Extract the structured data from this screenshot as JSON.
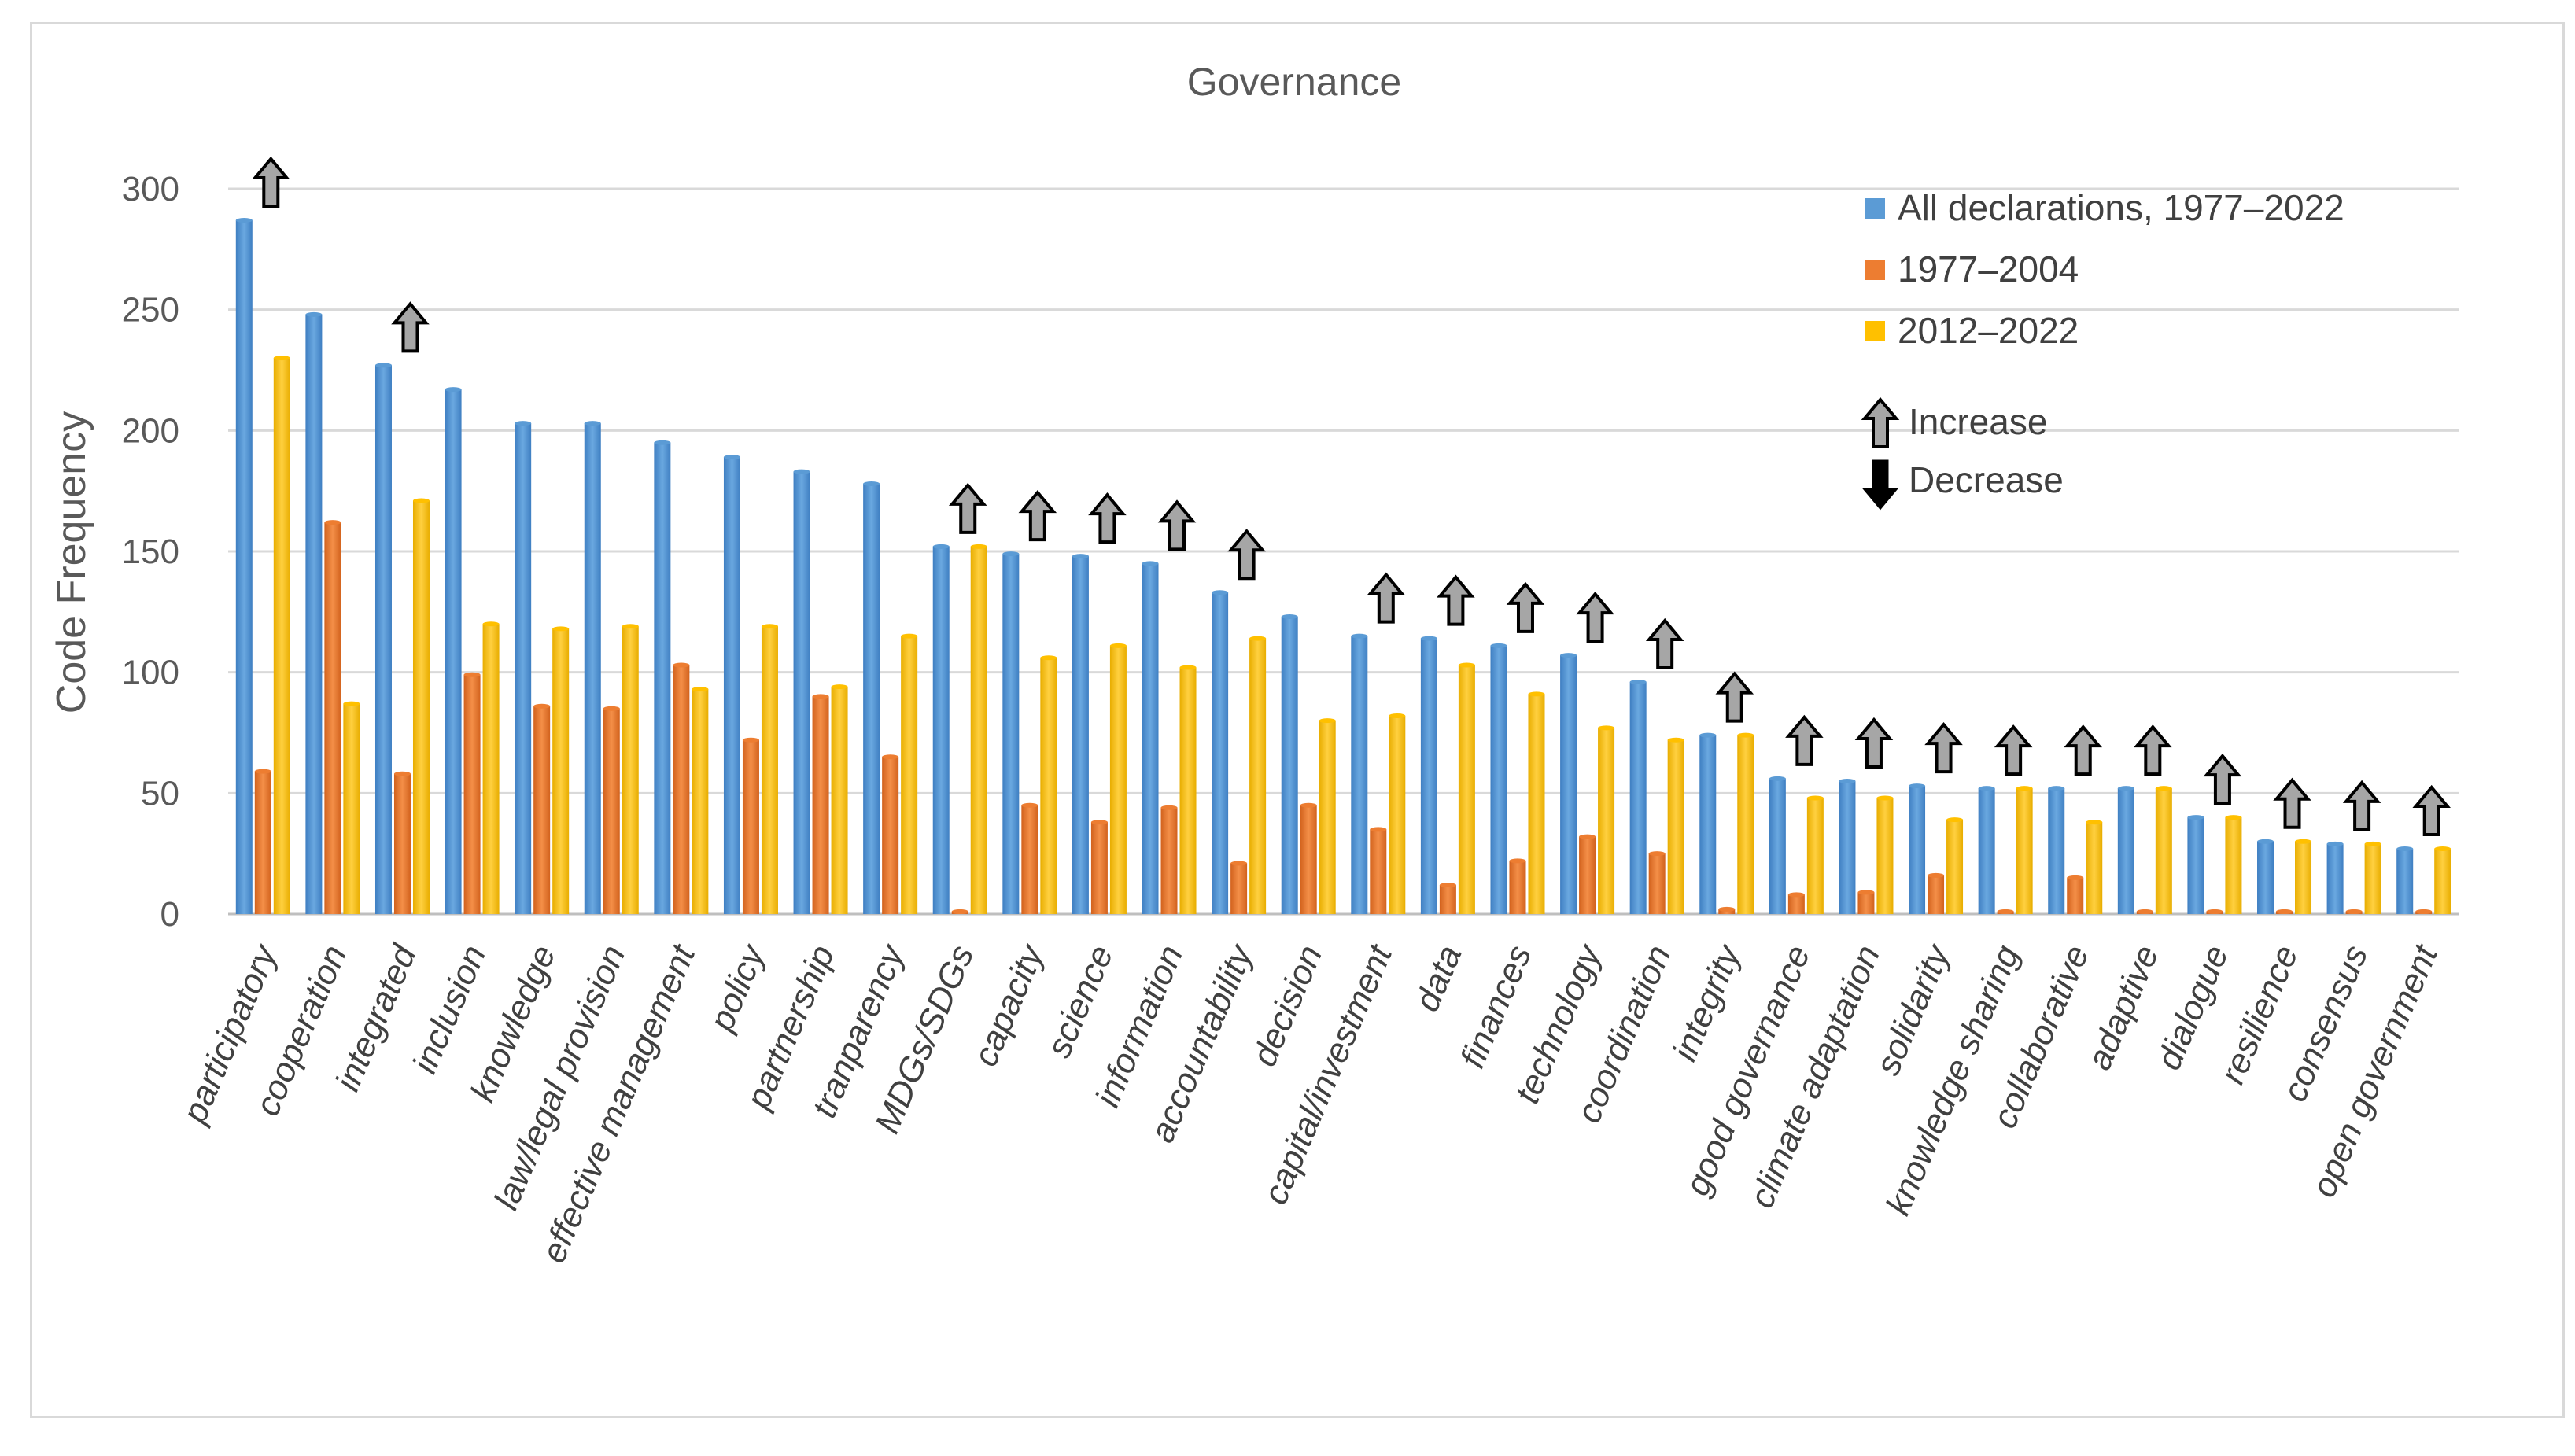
{
  "chart_data": {
    "type": "bar",
    "title": "Governance",
    "xlabel": "",
    "ylabel": "Code Frequency",
    "ylim": [
      0,
      300
    ],
    "yticks": [
      0,
      50,
      100,
      150,
      200,
      250,
      300
    ],
    "grid": true,
    "legend_position": "top-right",
    "categories": [
      "participatory",
      "cooperation",
      "integrated",
      "inclusion",
      "knowledge",
      "law/legal provision",
      "effective management",
      "policy",
      "partnership",
      "tranparency",
      "MDGs/SDGs",
      "capacity",
      "science",
      "information",
      "accountability",
      "decision",
      "capital/investment",
      "data",
      "finances",
      "technology",
      "coordination",
      "integrity",
      "good governance",
      "climate adaptation",
      "solidarity",
      "knowledge sharing",
      "collaborative",
      "adaptive",
      "dialogue",
      "resilience",
      "consensus",
      "open government"
    ],
    "series": [
      {
        "name": "All declarations, 1977–2022",
        "color": "#5b9bd5",
        "values": [
          287,
          248,
          227,
          217,
          203,
          203,
          195,
          189,
          183,
          178,
          152,
          149,
          148,
          145,
          133,
          123,
          115,
          114,
          111,
          107,
          96,
          74,
          56,
          55,
          53,
          52,
          52,
          52,
          40,
          30,
          29,
          27
        ]
      },
      {
        "name": "1977–2004",
        "color": "#ed7d31",
        "values": [
          59,
          162,
          58,
          99,
          86,
          85,
          103,
          72,
          90,
          65,
          1,
          45,
          38,
          44,
          21,
          45,
          35,
          12,
          22,
          32,
          25,
          2,
          8,
          9,
          16,
          1,
          15,
          1,
          1,
          1,
          1,
          1
        ]
      },
      {
        "name": "2012–2022",
        "color": "#ffc000",
        "values": [
          230,
          87,
          171,
          120,
          118,
          119,
          93,
          119,
          94,
          115,
          152,
          106,
          111,
          102,
          114,
          80,
          82,
          103,
          91,
          77,
          72,
          74,
          48,
          48,
          39,
          52,
          38,
          52,
          40,
          30,
          29,
          27
        ]
      }
    ],
    "arrows": [
      "up",
      null,
      "up",
      null,
      null,
      null,
      null,
      null,
      null,
      null,
      "up",
      "up",
      "up",
      "up",
      "up",
      null,
      "up",
      "up",
      "up",
      "up",
      "up",
      "up",
      "up",
      "up",
      "up",
      "up",
      "up",
      "up",
      "up",
      "up",
      "up",
      "up"
    ],
    "arrow_legend": {
      "increase": "Increase",
      "decrease": "Decrease"
    }
  }
}
